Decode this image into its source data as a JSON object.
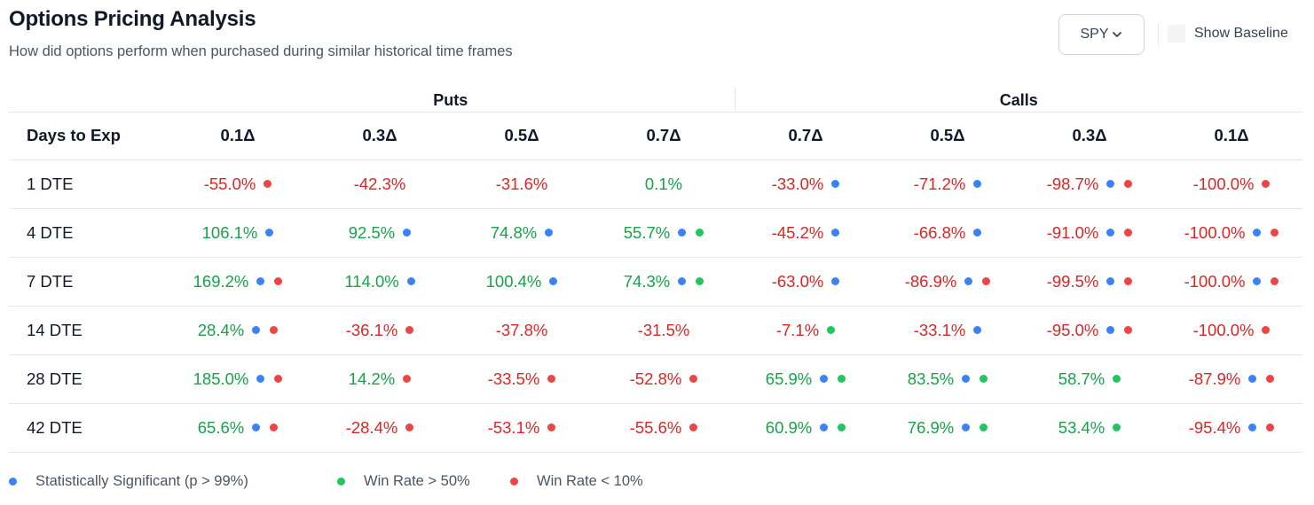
{
  "header": {
    "title": "Options Pricing Analysis",
    "subtitle": "How did options perform when purchased during similar historical time frames"
  },
  "controls": {
    "ticker": "SPY",
    "show_baseline_label": "Show Baseline",
    "show_baseline_checked": false
  },
  "table": {
    "groups": {
      "puts": "Puts",
      "calls": "Calls"
    },
    "first_col_header": "Days to Exp",
    "columns": [
      "0.1Δ",
      "0.3Δ",
      "0.5Δ",
      "0.7Δ",
      "0.7Δ",
      "0.5Δ",
      "0.3Δ",
      "0.1Δ"
    ],
    "rows": [
      {
        "label": "1 DTE",
        "cells": [
          {
            "v": "-55.0%",
            "d": [
              "red"
            ]
          },
          {
            "v": "-42.3%",
            "d": []
          },
          {
            "v": "-31.6%",
            "d": []
          },
          {
            "v": "0.1%",
            "d": []
          },
          {
            "v": "-33.0%",
            "d": [
              "blue"
            ]
          },
          {
            "v": "-71.2%",
            "d": [
              "blue"
            ]
          },
          {
            "v": "-98.7%",
            "d": [
              "blue",
              "red"
            ]
          },
          {
            "v": "-100.0%",
            "d": [
              "red"
            ]
          }
        ]
      },
      {
        "label": "4 DTE",
        "cells": [
          {
            "v": "106.1%",
            "d": [
              "blue"
            ]
          },
          {
            "v": "92.5%",
            "d": [
              "blue"
            ]
          },
          {
            "v": "74.8%",
            "d": [
              "blue"
            ]
          },
          {
            "v": "55.7%",
            "d": [
              "blue",
              "green"
            ]
          },
          {
            "v": "-45.2%",
            "d": [
              "blue"
            ]
          },
          {
            "v": "-66.8%",
            "d": [
              "blue"
            ]
          },
          {
            "v": "-91.0%",
            "d": [
              "blue",
              "red"
            ]
          },
          {
            "v": "-100.0%",
            "d": [
              "blue",
              "red"
            ]
          }
        ]
      },
      {
        "label": "7 DTE",
        "cells": [
          {
            "v": "169.2%",
            "d": [
              "blue",
              "red"
            ]
          },
          {
            "v": "114.0%",
            "d": [
              "blue"
            ]
          },
          {
            "v": "100.4%",
            "d": [
              "blue"
            ]
          },
          {
            "v": "74.3%",
            "d": [
              "blue",
              "green"
            ]
          },
          {
            "v": "-63.0%",
            "d": [
              "blue"
            ]
          },
          {
            "v": "-86.9%",
            "d": [
              "blue",
              "red"
            ]
          },
          {
            "v": "-99.5%",
            "d": [
              "blue",
              "red"
            ]
          },
          {
            "v": "-100.0%",
            "d": [
              "blue",
              "red"
            ]
          }
        ]
      },
      {
        "label": "14 DTE",
        "cells": [
          {
            "v": "28.4%",
            "d": [
              "blue",
              "red"
            ]
          },
          {
            "v": "-36.1%",
            "d": [
              "red"
            ]
          },
          {
            "v": "-37.8%",
            "d": []
          },
          {
            "v": "-31.5%",
            "d": []
          },
          {
            "v": "-7.1%",
            "d": [
              "green"
            ]
          },
          {
            "v": "-33.1%",
            "d": [
              "blue"
            ]
          },
          {
            "v": "-95.0%",
            "d": [
              "blue",
              "red"
            ]
          },
          {
            "v": "-100.0%",
            "d": [
              "red"
            ]
          }
        ]
      },
      {
        "label": "28 DTE",
        "cells": [
          {
            "v": "185.0%",
            "d": [
              "blue",
              "red"
            ]
          },
          {
            "v": "14.2%",
            "d": [
              "red"
            ]
          },
          {
            "v": "-33.5%",
            "d": [
              "red"
            ]
          },
          {
            "v": "-52.8%",
            "d": [
              "red"
            ]
          },
          {
            "v": "65.9%",
            "d": [
              "blue",
              "green"
            ]
          },
          {
            "v": "83.5%",
            "d": [
              "blue",
              "green"
            ]
          },
          {
            "v": "58.7%",
            "d": [
              "green"
            ]
          },
          {
            "v": "-87.9%",
            "d": [
              "blue",
              "red"
            ]
          }
        ]
      },
      {
        "label": "42 DTE",
        "cells": [
          {
            "v": "65.6%",
            "d": [
              "blue",
              "red"
            ]
          },
          {
            "v": "-28.4%",
            "d": [
              "red"
            ]
          },
          {
            "v": "-53.1%",
            "d": [
              "red"
            ]
          },
          {
            "v": "-55.6%",
            "d": [
              "red"
            ]
          },
          {
            "v": "60.9%",
            "d": [
              "blue",
              "green"
            ]
          },
          {
            "v": "76.9%",
            "d": [
              "blue",
              "green"
            ]
          },
          {
            "v": "53.4%",
            "d": [
              "green"
            ]
          },
          {
            "v": "-95.4%",
            "d": [
              "blue",
              "red"
            ]
          }
        ]
      }
    ]
  },
  "legend": [
    {
      "color": "blue",
      "label": "Statistically Significant (p > 99%)"
    },
    {
      "color": "green",
      "label": "Win Rate > 50%"
    },
    {
      "color": "red",
      "label": "Win Rate < 10%"
    }
  ],
  "colors": {
    "positive": "#16a34a",
    "negative": "#dc2626",
    "blue_dot": "#3b82f6",
    "green_dot": "#22c55e",
    "red_dot": "#ef4444"
  }
}
